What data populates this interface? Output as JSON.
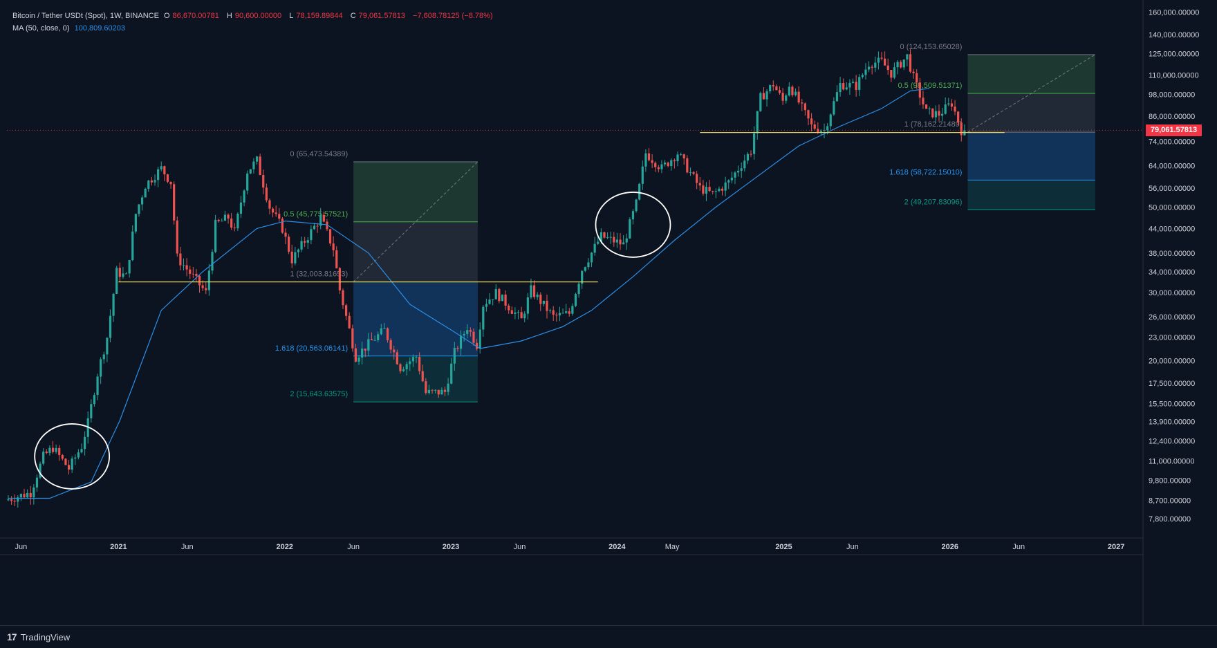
{
  "header": {
    "symbol": "Bitcoin / Tether USDt (Spot), 1W, BINANCE",
    "ohlc": {
      "o_label": "O",
      "o_value": "86,670.00781",
      "h_label": "H",
      "h_value": "90,600.00000",
      "l_label": "L",
      "l_value": "78,159.89844",
      "c_label": "C",
      "c_value": "79,061.57813",
      "change": "−7,608.78125 (−8.78%)"
    },
    "indicator": {
      "label": "MA (50, close, 0)",
      "value": "100,809.60203"
    }
  },
  "footer": {
    "brand": "TradingView",
    "logo_icon": "tradingview-logo-icon"
  },
  "colors": {
    "background": "#0d1421",
    "up": "#26a69a",
    "down": "#ef5350",
    "ma": "#2a8fe8",
    "support": "#e8d44d",
    "fib_green": "#1e3a33",
    "fib_gray": "#232a38",
    "fib_blue": "#13355d",
    "fib_teal": "#0e2f3a",
    "last_price": "#f23645"
  },
  "chart_data": {
    "type": "candlestick",
    "scale": "log",
    "ylim": [
      7000,
      165000
    ],
    "y_ticks": [
      {
        "value": 160000,
        "label": "160,000.00000"
      },
      {
        "value": 140000,
        "label": "140,000.00000"
      },
      {
        "value": 125000,
        "label": "125,000.00000"
      },
      {
        "value": 110000,
        "label": "110,000.00000"
      },
      {
        "value": 98000,
        "label": "98,000.00000"
      },
      {
        "value": 86000,
        "label": "86,000.00000"
      },
      {
        "value": 74000,
        "label": "74,000.00000"
      },
      {
        "value": 64000,
        "label": "64,000.00000"
      },
      {
        "value": 56000,
        "label": "56,000.00000"
      },
      {
        "value": 50000,
        "label": "50,000.00000"
      },
      {
        "value": 44000,
        "label": "44,000.00000"
      },
      {
        "value": 38000,
        "label": "38,000.00000"
      },
      {
        "value": 34000,
        "label": "34,000.00000"
      },
      {
        "value": 30000,
        "label": "30,000.00000"
      },
      {
        "value": 26000,
        "label": "26,000.00000"
      },
      {
        "value": 23000,
        "label": "23,000.00000"
      },
      {
        "value": 20000,
        "label": "20,000.00000"
      },
      {
        "value": 17500,
        "label": "17,500.00000"
      },
      {
        "value": 15500,
        "label": "15,500.00000"
      },
      {
        "value": 13900,
        "label": "13,900.00000"
      },
      {
        "value": 12400,
        "label": "12,400.00000"
      },
      {
        "value": 11000,
        "label": "11,000.00000"
      },
      {
        "value": 9800,
        "label": "9,800.00000"
      },
      {
        "value": 8700,
        "label": "8,700.00000"
      },
      {
        "value": 7800,
        "label": "7,800.00000"
      }
    ],
    "x_range": [
      "2020-05-01",
      "2027-03-01"
    ],
    "x_ticks": [
      {
        "date": "2020-06-01",
        "label": "Jun",
        "bold": false
      },
      {
        "date": "2021-01-01",
        "label": "2021",
        "bold": true
      },
      {
        "date": "2021-06-01",
        "label": "Jun",
        "bold": false
      },
      {
        "date": "2022-01-01",
        "label": "2022",
        "bold": true
      },
      {
        "date": "2022-06-01",
        "label": "Jun",
        "bold": false
      },
      {
        "date": "2023-01-01",
        "label": "2023",
        "bold": true
      },
      {
        "date": "2023-06-01",
        "label": "Jun",
        "bold": false
      },
      {
        "date": "2024-01-01",
        "label": "2024",
        "bold": true
      },
      {
        "date": "2024-05-01",
        "label": "May",
        "bold": false
      },
      {
        "date": "2025-01-01",
        "label": "2025",
        "bold": true
      },
      {
        "date": "2025-06-01",
        "label": "Jun",
        "bold": false
      },
      {
        "date": "2026-01-01",
        "label": "2026",
        "bold": true
      },
      {
        "date": "2026-06-01",
        "label": "Jun",
        "bold": false
      },
      {
        "date": "2027-01-01",
        "label": "2027",
        "bold": true
      }
    ],
    "price_path": [
      [
        "2020-05-04",
        8700
      ],
      [
        "2020-06-29",
        9100
      ],
      [
        "2020-07-27",
        11300
      ],
      [
        "2020-08-17",
        11900
      ],
      [
        "2020-09-21",
        10500
      ],
      [
        "2020-10-19",
        12000
      ],
      [
        "2020-11-02",
        13800
      ],
      [
        "2020-11-23",
        18500
      ],
      [
        "2020-12-14",
        23000
      ],
      [
        "2021-01-04",
        34000
      ],
      [
        "2021-01-25",
        33000
      ],
      [
        "2021-02-15",
        48000
      ],
      [
        "2021-03-08",
        57000
      ],
      [
        "2021-04-12",
        63000
      ],
      [
        "2021-05-03",
        58000
      ],
      [
        "2021-05-17",
        37000
      ],
      [
        "2021-06-21",
        33000
      ],
      [
        "2021-07-19",
        30000
      ],
      [
        "2021-08-09",
        45000
      ],
      [
        "2021-09-06",
        47000
      ],
      [
        "2021-09-20",
        43000
      ],
      [
        "2021-10-18",
        62000
      ],
      [
        "2021-11-08",
        66000
      ],
      [
        "2021-12-06",
        50000
      ],
      [
        "2022-01-03",
        44000
      ],
      [
        "2022-01-24",
        36500
      ],
      [
        "2022-03-28",
        47000
      ],
      [
        "2022-04-25",
        39000
      ],
      [
        "2022-05-09",
        30500
      ],
      [
        "2022-06-13",
        20500
      ],
      [
        "2022-07-18",
        22500
      ],
      [
        "2022-08-15",
        24000
      ],
      [
        "2022-09-19",
        19200
      ],
      [
        "2022-10-24",
        20500
      ],
      [
        "2022-11-14",
        16500
      ],
      [
        "2022-12-26",
        16600
      ],
      [
        "2023-01-16",
        21000
      ],
      [
        "2023-02-13",
        24500
      ],
      [
        "2023-03-06",
        22000
      ],
      [
        "2023-03-20",
        28000
      ],
      [
        "2023-04-17",
        30000
      ],
      [
        "2023-06-12",
        25500
      ],
      [
        "2023-07-03",
        30500
      ],
      [
        "2023-08-21",
        26000
      ],
      [
        "2023-09-25",
        26500
      ],
      [
        "2023-10-23",
        34500
      ],
      [
        "2023-12-04",
        42000
      ],
      [
        "2024-01-22",
        40000
      ],
      [
        "2024-02-19",
        51000
      ],
      [
        "2024-03-11",
        69000
      ],
      [
        "2024-04-15",
        63000
      ],
      [
        "2024-05-20",
        69000
      ],
      [
        "2024-07-08",
        56000
      ],
      [
        "2024-08-05",
        54000
      ],
      [
        "2024-09-09",
        58000
      ],
      [
        "2024-10-28",
        70000
      ],
      [
        "2024-11-18",
        96000
      ],
      [
        "2024-12-16",
        104000
      ],
      [
        "2025-01-06",
        94000
      ],
      [
        "2025-01-20",
        104000
      ],
      [
        "2025-03-10",
        81000
      ],
      [
        "2025-04-07",
        79000
      ],
      [
        "2025-05-12",
        104000
      ],
      [
        "2025-06-16",
        103000
      ],
      [
        "2025-07-14",
        118000
      ],
      [
        "2025-08-11",
        119000
      ],
      [
        "2025-09-01",
        111000
      ],
      [
        "2025-10-06",
        123000
      ],
      [
        "2025-10-20",
        108000
      ],
      [
        "2025-11-17",
        88000
      ],
      [
        "2025-12-15",
        87000
      ],
      [
        "2026-01-12",
        93000
      ],
      [
        "2026-02-02",
        79061
      ]
    ],
    "ma_path": [
      [
        "2020-05-04",
        8800
      ],
      [
        "2020-08-03",
        8800
      ],
      [
        "2020-11-02",
        9700
      ],
      [
        "2021-01-04",
        14000
      ],
      [
        "2021-04-05",
        27000
      ],
      [
        "2021-07-05",
        34000
      ],
      [
        "2021-11-01",
        44000
      ],
      [
        "2022-01-03",
        46000
      ],
      [
        "2022-04-04",
        45000
      ],
      [
        "2022-07-04",
        38000
      ],
      [
        "2022-10-03",
        28000
      ],
      [
        "2023-01-02",
        24000
      ],
      [
        "2023-03-06",
        21500
      ],
      [
        "2023-06-05",
        22500
      ],
      [
        "2023-09-04",
        24500
      ],
      [
        "2023-11-06",
        27000
      ],
      [
        "2024-02-05",
        33000
      ],
      [
        "2024-05-06",
        41000
      ],
      [
        "2024-08-05",
        50000
      ],
      [
        "2024-11-04",
        60000
      ],
      [
        "2025-02-03",
        72000
      ],
      [
        "2025-05-05",
        81000
      ],
      [
        "2025-08-04",
        90000
      ],
      [
        "2025-10-06",
        100000
      ],
      [
        "2025-11-17",
        101500
      ]
    ],
    "support_lines": [
      {
        "price": 32000,
        "from": "2021-01-01",
        "to": "2023-11-20"
      },
      {
        "price": 78000,
        "from": "2024-07-01",
        "to": "2026-05-01"
      }
    ],
    "fib_ranges": [
      {
        "from": "2022-06-01",
        "to": "2023-03-01",
        "levels": [
          {
            "ratio": 0,
            "price": 65473.54,
            "label": "0 (65,473.54389)",
            "color": "#787b86"
          },
          {
            "ratio": 0.5,
            "price": 45775.58,
            "label": "0.5 (45,775.57521)",
            "color": "#4caf50"
          },
          {
            "ratio": 1,
            "price": 32003.82,
            "label": "1 (32,003.81653)",
            "color": "#787b86"
          },
          {
            "ratio": 1.618,
            "price": 20563.06,
            "label": "1.618 (20,563.06141)",
            "color": "#2196f3"
          },
          {
            "ratio": 2,
            "price": 15643.64,
            "label": "2 (15,643.63575)",
            "color": "#089981"
          }
        ]
      },
      {
        "from": "2026-02-09",
        "to": "2026-11-16",
        "levels": [
          {
            "ratio": 0,
            "price": 124153.65,
            "label": "0 (124,153.65028)",
            "color": "#787b86"
          },
          {
            "ratio": 0.5,
            "price": 98509.51,
            "label": "0.5 (98,509.51371)",
            "color": "#4caf50"
          },
          {
            "ratio": 1,
            "price": 78162.21,
            "label": "1 (78,162.21489)",
            "color": "#787b86"
          },
          {
            "ratio": 1.618,
            "price": 58722.15,
            "label": "1.618 (58,722.15010)",
            "color": "#2196f3"
          },
          {
            "ratio": 2,
            "price": 49207.83,
            "label": "2 (49,207.83096)",
            "color": "#089981"
          }
        ]
      }
    ],
    "annotation_circles": [
      {
        "date": "2020-09-21",
        "price": 11300
      },
      {
        "date": "2024-02-05",
        "price": 45000
      }
    ],
    "last_price": {
      "value": 79061.57813,
      "label": "79,061.57813"
    }
  }
}
